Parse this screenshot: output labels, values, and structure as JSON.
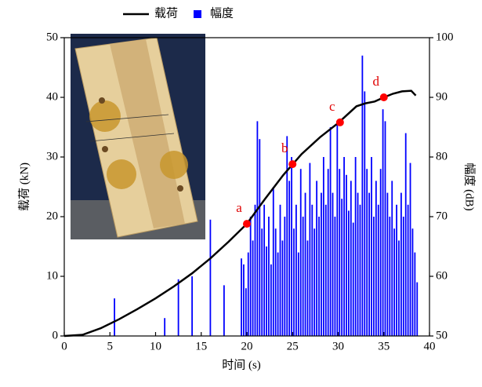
{
  "chart_data": {
    "type": "line_bar",
    "x_label": "时间 (s)",
    "y_label": "载荷 (kN)",
    "y2_label": "幅度 (dB)",
    "xlim": [
      0,
      40
    ],
    "xticks": [
      0,
      5,
      10,
      15,
      20,
      25,
      30,
      35,
      40
    ],
    "ylim": [
      0,
      50
    ],
    "yticks": [
      0,
      10,
      20,
      30,
      40,
      50
    ],
    "y2lim": [
      50,
      100
    ],
    "y2ticks": [
      50,
      60,
      70,
      80,
      90,
      100
    ],
    "series": [
      {
        "name": "载荷",
        "type": "line",
        "color": "#000000",
        "x": [
          0,
          2,
          4,
          6,
          8,
          10,
          12,
          14,
          16,
          18,
          20,
          22,
          24,
          26,
          28,
          30,
          32,
          33,
          34,
          35,
          36,
          37,
          38,
          38.5
        ],
        "values": [
          0,
          0.2,
          1.3,
          2.8,
          4.5,
          6.3,
          8.3,
          10.5,
          13,
          15.8,
          18.8,
          23,
          27,
          30.5,
          33.3,
          35.7,
          38.5,
          39,
          39.3,
          40,
          40.6,
          41,
          41.1,
          40.3
        ]
      },
      {
        "name": "幅度",
        "type": "bar",
        "color": "#0000ff",
        "axis": "y2",
        "x": [
          5.5,
          11,
          12.5,
          14,
          16,
          17.5,
          19.4,
          19.65,
          19.9,
          20.15,
          20.4,
          20.65,
          20.9,
          21.15,
          21.4,
          21.65,
          21.9,
          22.15,
          22.4,
          22.65,
          22.9,
          23.15,
          23.4,
          23.65,
          23.9,
          24.15,
          24.4,
          24.65,
          24.9,
          25.15,
          25.4,
          25.65,
          25.9,
          26.15,
          26.4,
          26.65,
          26.9,
          27.15,
          27.4,
          27.65,
          27.9,
          28.15,
          28.4,
          28.65,
          28.9,
          29.15,
          29.4,
          29.65,
          29.9,
          30.15,
          30.4,
          30.65,
          30.9,
          31.15,
          31.4,
          31.65,
          31.9,
          32.15,
          32.4,
          32.65,
          32.9,
          33.15,
          33.4,
          33.65,
          33.9,
          34.15,
          34.4,
          34.65,
          34.9,
          35.15,
          35.4,
          35.65,
          35.9,
          36.15,
          36.4,
          36.65,
          36.9,
          37.15,
          37.4,
          37.65,
          37.9,
          38.15,
          38.4,
          38.65
        ],
        "values": [
          56.3,
          53,
          59.5,
          60,
          69.5,
          58.5,
          63,
          62,
          58,
          64,
          70,
          66,
          72,
          86,
          83,
          68,
          72,
          65,
          70,
          62,
          75,
          68,
          64,
          72,
          66,
          70,
          83.5,
          76,
          80,
          68,
          72,
          64,
          78,
          70,
          74,
          66,
          79,
          72,
          68,
          76,
          70,
          74,
          80,
          72,
          78,
          85,
          74,
          70,
          86,
          78,
          73,
          80,
          77,
          71,
          76,
          69,
          80,
          74,
          72,
          97,
          91,
          78,
          74,
          80,
          70,
          76,
          72,
          78,
          88,
          86,
          74,
          70,
          76,
          68,
          72,
          66,
          74,
          70,
          84,
          72,
          79,
          68,
          64,
          59
        ]
      }
    ],
    "annotations": [
      {
        "label": "a",
        "x": 20,
        "y": 18.8
      },
      {
        "label": "b",
        "x": 25,
        "y": 28.8
      },
      {
        "label": "c",
        "x": 30.2,
        "y": 35.8
      },
      {
        "label": "d",
        "x": 35,
        "y": 40
      }
    ]
  }
}
